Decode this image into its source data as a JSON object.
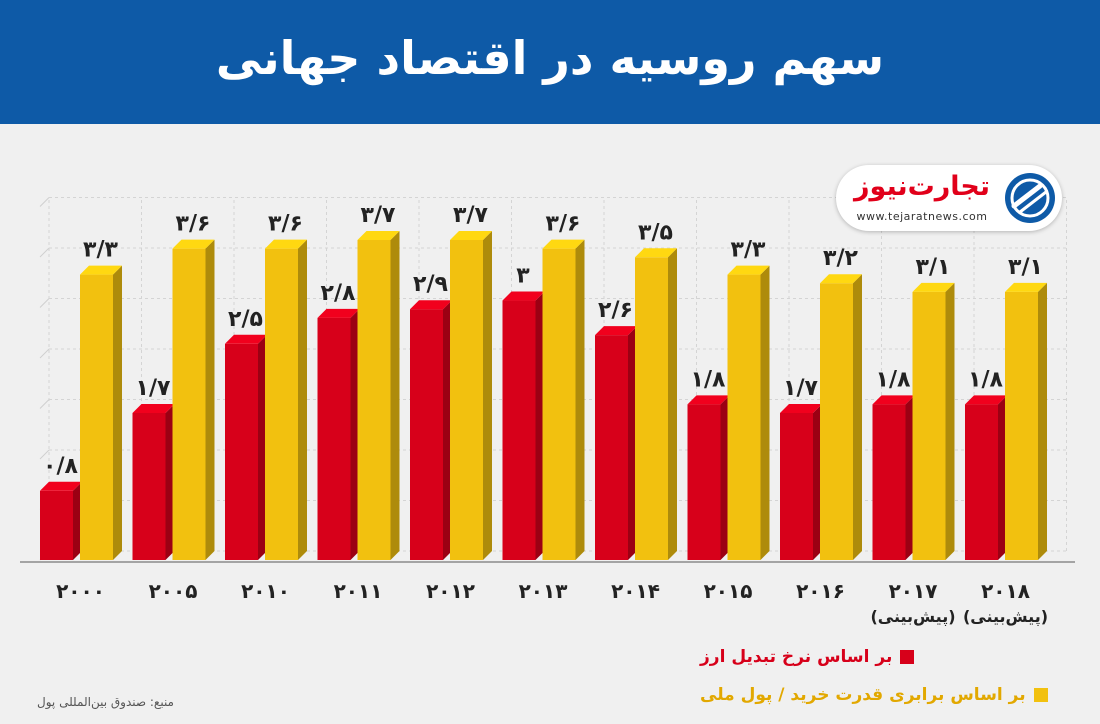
{
  "header": {
    "title": "سهم روسیه در اقتصاد جهانی"
  },
  "logo": {
    "name": "تجارت‌نیوز",
    "url": "www.tejaratnews.com"
  },
  "chart_data": {
    "type": "bar",
    "categories": [
      "۲۰۰۰",
      "۲۰۰۵",
      "۲۰۱۰",
      "۲۰۱۱",
      "۲۰۱۲",
      "۲۰۱۳",
      "۲۰۱۴",
      "۲۰۱۵",
      "۲۰۱۶",
      "۲۰۱۷\n(پیش‌بینی)",
      "۲۰۱۸\n(پیش‌بینی)"
    ],
    "series": [
      {
        "name": "بر اساس نرخ تبدیل ارز",
        "color": "#d7001a",
        "values": [
          0.8,
          1.7,
          2.5,
          2.8,
          2.9,
          3,
          2.6,
          1.8,
          1.7,
          1.8,
          1.8
        ],
        "labels": [
          "۰/۸",
          "۱/۷",
          "۲/۵",
          "۲/۸",
          "۲/۹",
          "۳",
          "۲/۶",
          "۱/۸",
          "۱/۷",
          "۱/۸",
          "۱/۸"
        ]
      },
      {
        "name": "بر اساس برابری قدرت خرید / پول ملی",
        "color": "#f2c10f",
        "values": [
          3.3,
          3.6,
          3.6,
          3.7,
          3.7,
          3.6,
          3.5,
          3.3,
          3.2,
          3.1,
          3.1
        ],
        "labels": [
          "۳/۳",
          "۳/۶",
          "۳/۶",
          "۳/۷",
          "۳/۷",
          "۳/۶",
          "۳/۵",
          "۳/۳",
          "۳/۲",
          "۳/۱",
          "۳/۱"
        ]
      }
    ],
    "ylim": [
      0,
      3.7
    ],
    "grid": true,
    "legend": "bottom-right"
  },
  "source": "منبع: صندوق بین‌المللی پول"
}
